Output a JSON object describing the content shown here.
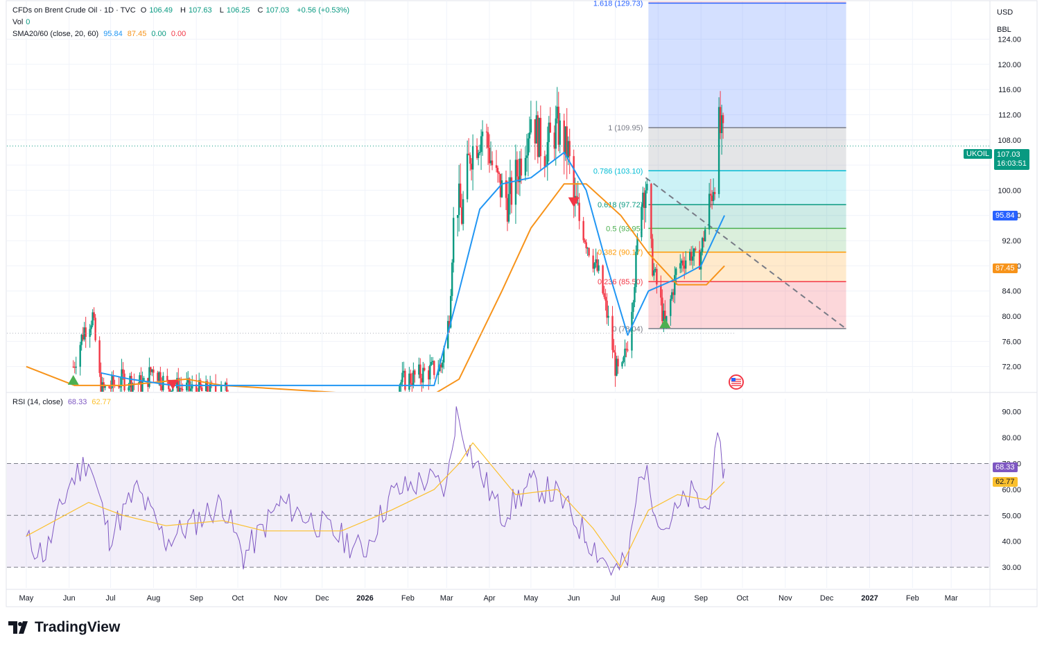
{
  "header": {
    "symbol": "CFDs on Brent Crude Oil · 1D · TVC",
    "o_label": "O",
    "o": "106.49",
    "h_label": "H",
    "h": "107.63",
    "l_label": "L",
    "l": "106.25",
    "c_label": "C",
    "c": "107.03",
    "change": "+0.56 (+0.53%)",
    "vol_label": "Vol",
    "vol": "0",
    "sma_label": "SMA20/60 (close, 20, 60)",
    "sma_v1": "95.84",
    "sma_v2": "87.45",
    "sma_v3": "0.00",
    "sma_v4": "0.00",
    "rsi_label": "RSI (14, close)",
    "rsi_v1": "68.33",
    "rsi_v2": "62.77"
  },
  "units": {
    "currency": "USD",
    "unit": "BBL"
  },
  "price_tags": {
    "symbol": "UKOIL",
    "last": "107.03",
    "countdown": "16:03:51",
    "sma20": "95.84",
    "sma60": "87.45",
    "rsi": "68.33",
    "rsi_ma": "62.77"
  },
  "brand": "TradingView",
  "colors": {
    "up": "#089981",
    "down": "#f23645",
    "sma20": "#2196f3",
    "sma60": "#f7931a",
    "rsi": "#7e57c2",
    "rsi_ma": "#fbc02d"
  },
  "chart_data": {
    "type": "candlestick",
    "price_axis": {
      "min": 68,
      "max": 130,
      "ticks": [
        "72.00",
        "76.00",
        "80.00",
        "84.00",
        "88.00",
        "92.00",
        "96.00",
        "100.00",
        "104.00",
        "108.00",
        "112.00",
        "116.00",
        "120.00",
        "124.00"
      ]
    },
    "time_axis": {
      "months": [
        "May",
        "Jun",
        "Jul",
        "Aug",
        "Sep",
        "Oct",
        "Nov",
        "Dec",
        "2026",
        "Feb",
        "Mar",
        "Apr",
        "May",
        "Jun",
        "Jul",
        "Aug",
        "Sep",
        "Oct",
        "Nov",
        "Dec",
        "2027",
        "Feb",
        "Mar"
      ]
    },
    "price_path": [
      [
        "2025-06-04",
        72
      ],
      [
        "2025-06-12",
        78
      ],
      [
        "2025-06-18",
        80
      ],
      [
        "2025-06-24",
        68
      ],
      [
        "2025-07-10",
        70
      ],
      [
        "2025-07-25",
        69
      ],
      [
        "2025-08-01",
        72
      ],
      [
        "2025-08-10",
        69
      ],
      [
        "2025-09-05",
        68
      ],
      [
        "2025-10-05",
        68
      ],
      [
        "2025-12-31",
        67
      ],
      [
        "2026-02-01",
        70
      ],
      [
        "2026-02-25",
        72
      ],
      [
        "2026-03-03",
        80
      ],
      [
        "2026-03-07",
        100
      ],
      [
        "2026-03-12",
        96
      ],
      [
        "2026-03-18",
        106
      ],
      [
        "2026-03-28",
        110
      ],
      [
        "2026-04-05",
        102
      ],
      [
        "2026-04-15",
        98
      ],
      [
        "2026-04-25",
        106
      ],
      [
        "2026-05-01",
        112
      ],
      [
        "2026-05-10",
        106
      ],
      [
        "2026-05-20",
        110
      ],
      [
        "2026-05-28",
        106
      ],
      [
        "2026-06-01",
        98
      ],
      [
        "2026-06-10",
        92
      ],
      [
        "2026-06-20",
        86
      ],
      [
        "2026-06-27",
        78
      ],
      [
        "2026-07-01",
        72
      ],
      [
        "2026-07-05",
        70
      ],
      [
        "2026-07-10",
        76
      ],
      [
        "2026-07-15",
        86
      ],
      [
        "2026-07-20",
        100
      ],
      [
        "2026-07-23",
        101
      ],
      [
        "2026-07-28",
        88
      ],
      [
        "2026-08-03",
        82
      ],
      [
        "2026-08-06",
        78
      ],
      [
        "2026-08-15",
        88
      ],
      [
        "2026-08-25",
        90
      ],
      [
        "2026-08-30",
        88
      ],
      [
        "2026-09-05",
        95
      ],
      [
        "2026-09-12",
        104
      ],
      [
        "2026-09-14",
        110
      ],
      [
        "2026-09-18",
        107
      ]
    ],
    "sma20": [
      [
        "2025-06-24",
        71
      ],
      [
        "2025-07-15",
        70
      ],
      [
        "2025-08-15",
        69
      ],
      [
        "2026-02-20",
        69
      ],
      [
        "2026-03-10",
        84
      ],
      [
        "2026-03-25",
        97
      ],
      [
        "2026-04-10",
        101
      ],
      [
        "2026-05-01",
        102
      ],
      [
        "2026-05-25",
        106
      ],
      [
        "2026-06-10",
        100
      ],
      [
        "2026-06-25",
        88
      ],
      [
        "2026-07-10",
        77
      ],
      [
        "2026-07-25",
        84
      ],
      [
        "2026-08-15",
        86
      ],
      [
        "2026-09-01",
        88
      ],
      [
        "2026-09-18",
        96
      ]
    ],
    "sma60": [
      [
        "2025-05-01",
        72
      ],
      [
        "2025-06-05",
        69
      ],
      [
        "2025-07-10",
        69
      ],
      [
        "2025-08-25",
        70
      ],
      [
        "2025-09-20",
        69
      ],
      [
        "2026-02-15",
        67
      ],
      [
        "2026-03-10",
        70
      ],
      [
        "2026-04-10",
        84
      ],
      [
        "2026-05-01",
        94
      ],
      [
        "2026-05-25",
        101
      ],
      [
        "2026-06-10",
        101
      ],
      [
        "2026-07-05",
        96
      ],
      [
        "2026-07-25",
        90
      ],
      [
        "2026-08-15",
        85
      ],
      [
        "2026-09-05",
        85
      ],
      [
        "2026-09-18",
        88
      ]
    ],
    "fibonacci": {
      "levels": [
        {
          "ratio": "1.618",
          "value": 129.73,
          "label": "1.618 (129.73)"
        },
        {
          "ratio": "1",
          "value": 109.95,
          "label": "1 (109.95)"
        },
        {
          "ratio": "0.786",
          "value": 103.1,
          "label": "0.786 (103.10)"
        },
        {
          "ratio": "0.618",
          "value": 97.72,
          "label": "0.618 (97.72)"
        },
        {
          "ratio": "0.5",
          "value": 93.95,
          "label": "0.5 (93.95)"
        },
        {
          "ratio": "0.382",
          "value": 90.17,
          "label": "0.382 (90.17)"
        },
        {
          "ratio": "0.236",
          "value": 85.5,
          "label": "0.236 (85.50)"
        },
        {
          "ratio": "0",
          "value": 78.04,
          "label": "0 (78.04)"
        }
      ],
      "start_date": "2026-07-25",
      "end_date": "2026-12-15"
    },
    "trend_line": [
      [
        "2026-07-23",
        102
      ],
      [
        "2026-12-15",
        78
      ]
    ],
    "markers": [
      {
        "type": "buy",
        "date": "2025-06-04",
        "value": 70
      },
      {
        "type": "sell",
        "date": "2025-08-15",
        "value": 69
      },
      {
        "type": "sell",
        "date": "2026-06-01",
        "value": 98
      },
      {
        "type": "buy",
        "date": "2026-08-06",
        "value": 79
      }
    ],
    "rsi": {
      "axis": {
        "min": 22,
        "max": 95,
        "ticks": [
          "30.00",
          "40.00",
          "50.00",
          "60.00",
          "70.00",
          "80.00",
          "90.00"
        ]
      },
      "band": [
        30,
        70
      ],
      "rsi": [
        [
          "2025-05-01",
          40
        ],
        [
          "2025-05-15",
          35
        ],
        [
          "2025-06-01",
          62
        ],
        [
          "2025-06-15",
          72
        ],
        [
          "2025-06-30",
          42
        ],
        [
          "2025-07-20",
          60
        ],
        [
          "2025-08-10",
          40
        ],
        [
          "2025-09-01",
          48
        ],
        [
          "2025-09-20",
          55
        ],
        [
          "2025-10-05",
          34
        ],
        [
          "2025-11-01",
          55
        ],
        [
          "2025-12-01",
          46
        ],
        [
          "2025-12-31",
          36
        ],
        [
          "2026-01-20",
          58
        ],
        [
          "2026-02-15",
          64
        ],
        [
          "2026-03-01",
          60
        ],
        [
          "2026-03-08",
          90
        ],
        [
          "2026-03-20",
          72
        ],
        [
          "2026-04-10",
          50
        ],
        [
          "2026-05-01",
          62
        ],
        [
          "2026-05-20",
          58
        ],
        [
          "2026-06-10",
          42
        ],
        [
          "2026-06-30",
          28
        ],
        [
          "2026-07-10",
          32
        ],
        [
          "2026-07-20",
          70
        ],
        [
          "2026-08-05",
          45
        ],
        [
          "2026-08-25",
          58
        ],
        [
          "2026-09-05",
          52
        ],
        [
          "2026-09-13",
          76
        ],
        [
          "2026-09-18",
          68
        ]
      ],
      "rsi_ma": [
        [
          "2025-05-01",
          42
        ],
        [
          "2025-06-15",
          55
        ],
        [
          "2025-07-10",
          50
        ],
        [
          "2025-08-10",
          46
        ],
        [
          "2025-09-20",
          48
        ],
        [
          "2025-10-20",
          44
        ],
        [
          "2025-12-15",
          44
        ],
        [
          "2026-01-20",
          52
        ],
        [
          "2026-02-20",
          60
        ],
        [
          "2026-03-10",
          70
        ],
        [
          "2026-03-20",
          78
        ],
        [
          "2026-04-20",
          58
        ],
        [
          "2026-05-20",
          60
        ],
        [
          "2026-06-15",
          45
        ],
        [
          "2026-07-05",
          30
        ],
        [
          "2026-07-25",
          52
        ],
        [
          "2026-08-15",
          58
        ],
        [
          "2026-09-05",
          56
        ],
        [
          "2026-09-18",
          63
        ]
      ]
    }
  }
}
